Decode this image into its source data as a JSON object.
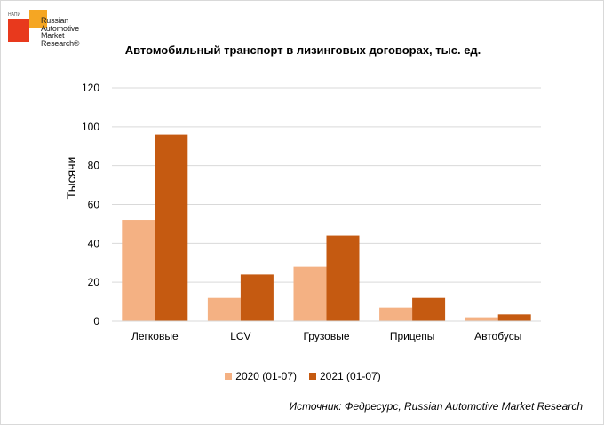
{
  "logo": {
    "small_text": "НАПИ",
    "lines": [
      "Russian",
      "Automotive",
      "Market",
      "Research®"
    ]
  },
  "source": "Источник: Федресурс, Russian Automotive Market Research",
  "chart_data": {
    "type": "bar",
    "title": "Автомобильный транспорт в лизинговых договорах, тыс. ед.",
    "ylabel": "Тысячи",
    "xlabel": "",
    "categories": [
      "Легковые",
      "LCV",
      "Грузовые",
      "Прицепы",
      "Автобусы"
    ],
    "series": [
      {
        "name": "2020 (01-07)",
        "color": "#f4b183",
        "values": [
          52,
          12,
          28,
          7,
          2
        ]
      },
      {
        "name": "2021 (01-07)",
        "color": "#c55a11",
        "values": [
          96,
          24,
          44,
          12,
          3.5
        ]
      }
    ],
    "ylim": [
      0,
      120
    ],
    "yticks": [
      0,
      20,
      40,
      60,
      80,
      100,
      120
    ],
    "grid": true,
    "legend_position": "bottom"
  }
}
